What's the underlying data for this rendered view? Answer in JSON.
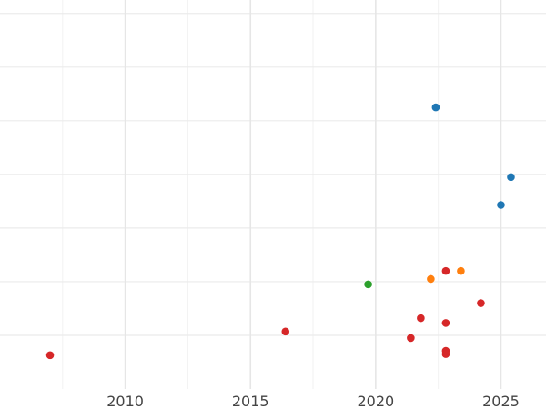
{
  "chart_data": {
    "type": "scatter",
    "title": "",
    "xlabel": "",
    "ylabel": "",
    "xlim": [
      2005,
      2026.8
    ],
    "ylim": [
      0,
      7.25
    ],
    "x_ticks": [
      2010,
      2015,
      2020,
      2025
    ],
    "x_tick_labels": [
      "2010",
      "2015",
      "2020",
      "2025"
    ],
    "x_minor_ticks": [
      2007.5,
      2012.5,
      2017.5,
      2022.5
    ],
    "y_gridlines": [
      1,
      2,
      3,
      4,
      5,
      6,
      7
    ],
    "grid": true,
    "legend": "none",
    "series": [
      {
        "color": "#1f77b4",
        "points": [
          {
            "x": 2022.4,
            "y": 5.25
          },
          {
            "x": 2025.4,
            "y": 3.95
          },
          {
            "x": 2025.0,
            "y": 3.43
          }
        ]
      },
      {
        "color": "#ff7f0e",
        "points": [
          {
            "x": 2023.4,
            "y": 2.2
          },
          {
            "x": 2022.2,
            "y": 2.05
          }
        ]
      },
      {
        "color": "#2ca02c",
        "points": [
          {
            "x": 2019.7,
            "y": 1.95
          }
        ]
      },
      {
        "color": "#d62728",
        "points": [
          {
            "x": 2007.0,
            "y": 0.63
          },
          {
            "x": 2016.4,
            "y": 1.07
          },
          {
            "x": 2021.4,
            "y": 0.95
          },
          {
            "x": 2021.8,
            "y": 1.32
          },
          {
            "x": 2022.8,
            "y": 2.2
          },
          {
            "x": 2022.8,
            "y": 1.23
          },
          {
            "x": 2024.2,
            "y": 1.6
          },
          {
            "x": 2022.8,
            "y": 0.71
          },
          {
            "x": 2022.8,
            "y": 0.65
          }
        ]
      }
    ]
  }
}
